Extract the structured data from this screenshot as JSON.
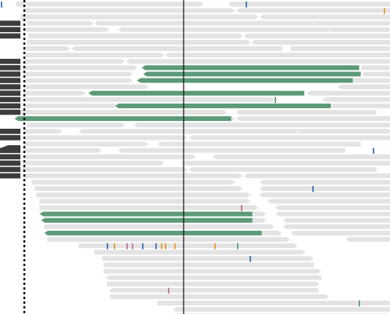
{
  "view": {
    "type": "read-alignment-pileup",
    "colors": {
      "background": "#ffffff",
      "read": "#e3e3e3",
      "read_edge": "#ffffff",
      "highlighted_read": "#5c9a78",
      "clipped_read": "#3c3c3c",
      "guide_line": "#111111",
      "mismatch_A": "#5c9a78",
      "mismatch_C": "#3b6eb8",
      "mismatch_G": "#e69a2e",
      "mismatch_T": "#c0739a",
      "mismatch_misc": "#b86a7a"
    }
  }
}
